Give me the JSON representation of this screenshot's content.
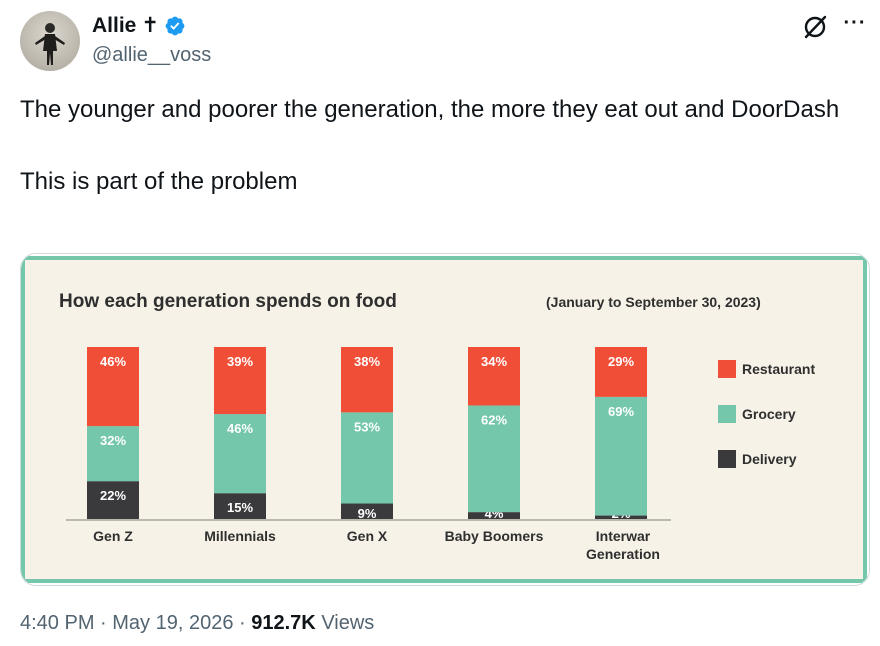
{
  "author": {
    "display_name": "Allie",
    "emoji_suffix": "✝",
    "handle": "@allie__voss",
    "verified": true,
    "verified_color": "#1d9bf0"
  },
  "tweet": {
    "paragraphs": [
      "The younger and poorer the generation, the more they eat out and DoorDash",
      "This is part of the problem"
    ]
  },
  "meta": {
    "time": "4:40 PM",
    "separator": " · ",
    "date": "May 19, 2026",
    "views_count": "912.7K",
    "views_label": "Views"
  },
  "icons": {
    "grok": "grok-icon",
    "more": "more-icon",
    "verified": "verified-badge-icon"
  },
  "chart_data": {
    "type": "bar",
    "stacked": true,
    "title": "How each generation spends on food",
    "subtitle": "(January to September 30, 2023)",
    "categories": [
      "Gen Z",
      "Millennials",
      "Gen X",
      "Baby Boomers",
      "Interwar Generation"
    ],
    "category_lines": [
      [
        "Gen Z"
      ],
      [
        "Millennials"
      ],
      [
        "Gen X"
      ],
      [
        "Baby Boomers"
      ],
      [
        "Interwar",
        "Generation"
      ]
    ],
    "series": [
      {
        "name": "Delivery",
        "color": "#3a3a3c",
        "values": [
          22,
          15,
          9,
          4,
          2
        ]
      },
      {
        "name": "Grocery",
        "color": "#74c7ab",
        "values": [
          32,
          46,
          53,
          62,
          69
        ]
      },
      {
        "name": "Restaurant",
        "color": "#f04e37",
        "values": [
          46,
          39,
          38,
          34,
          29
        ]
      }
    ],
    "legend_order": [
      "Restaurant",
      "Grocery",
      "Delivery"
    ],
    "legend_position": "right",
    "value_suffix": "%",
    "ylim": [
      0,
      100
    ],
    "grid": false,
    "background": "#f6f2e7",
    "border_color": "#74c7ab"
  }
}
